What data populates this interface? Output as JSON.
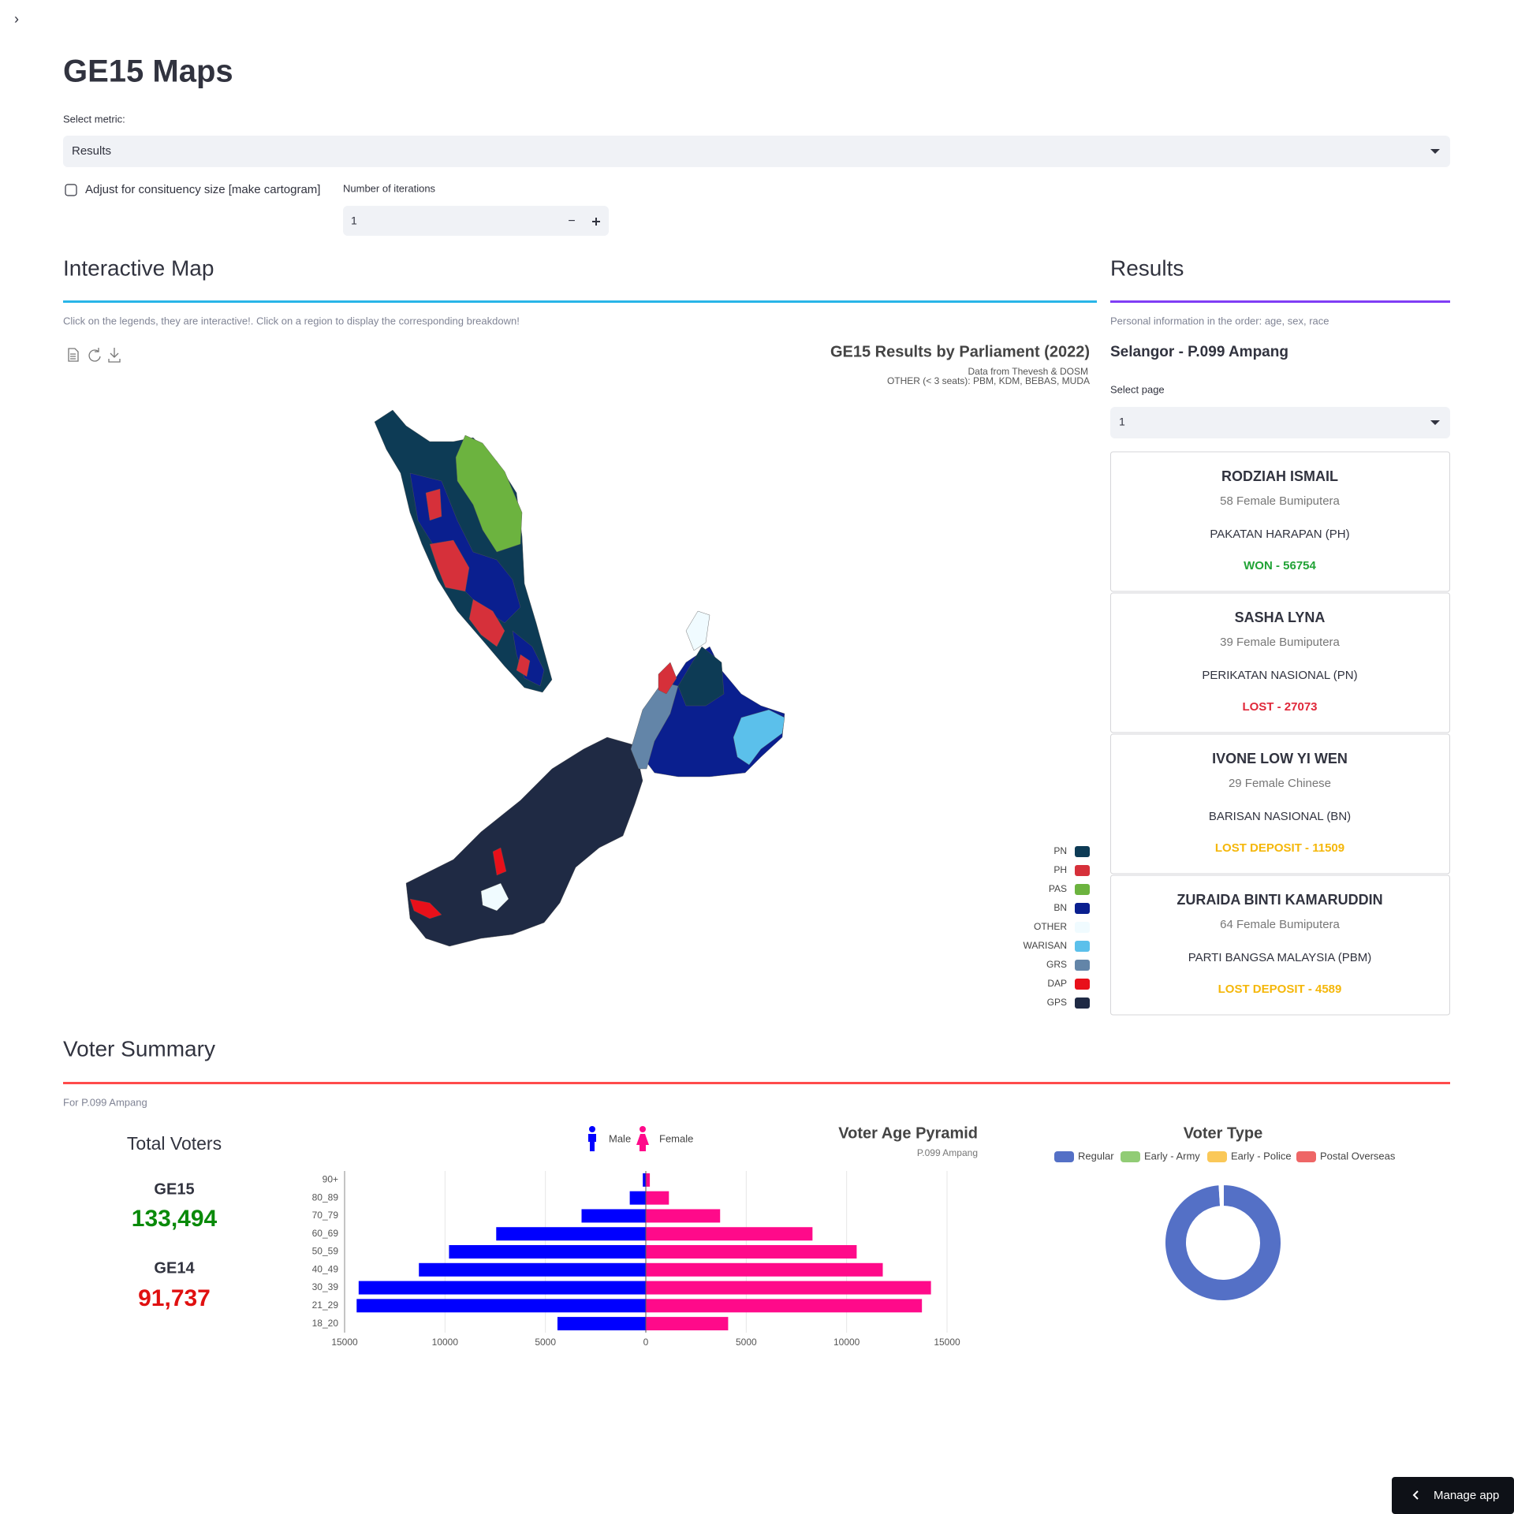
{
  "header": {
    "title": "GE15 Maps"
  },
  "controls": {
    "metric_label": "Select metric:",
    "metric_value": "Results",
    "checkbox_label": "Adjust for consituency size [make cartogram]",
    "iterations_label": "Number of iterations",
    "iterations_value": 1
  },
  "map_panel": {
    "heading": "Interactive Map",
    "caption": "Click on the legends, they are interactive!. Click on a region to display the corresponding breakdown!",
    "title": "GE15 Results by Parliament (2022)",
    "subtitle_1": "Data from Thevesh & DOSM",
    "subtitle_2": "OTHER (< 3 seats): PBM, KDM, BEBAS, MUDA",
    "legend": [
      {
        "name": "PN",
        "color": "#0d3b55"
      },
      {
        "name": "PH",
        "color": "#d6303a"
      },
      {
        "name": "PAS",
        "color": "#6cb33f"
      },
      {
        "name": "BN",
        "color": "#0a1f8f"
      },
      {
        "name": "OTHER",
        "color": "#f0fbff"
      },
      {
        "name": "WARISAN",
        "color": "#5bc0eb"
      },
      {
        "name": "GRS",
        "color": "#6385a8"
      },
      {
        "name": "DAP",
        "color": "#e8101a"
      },
      {
        "name": "GPS",
        "color": "#1f2a44"
      }
    ]
  },
  "results_panel": {
    "heading": "Results",
    "caption": "Personal information in the order: age, sex, race",
    "seat": "Selangor - P.099 Ampang",
    "page_label": "Select page",
    "page_value": 1,
    "candidates": [
      {
        "name": "RODZIAH ISMAIL",
        "info": "58 Female Bumiputera",
        "party": "PAKATAN HARAPAN (PH)",
        "result": "WON - 56754",
        "color": "#21a336"
      },
      {
        "name": "SASHA LYNA",
        "info": "39 Female Bumiputera",
        "party": "PERIKATAN NASIONAL (PN)",
        "result": "LOST - 27073",
        "color": "#e0283a"
      },
      {
        "name": "IVONE LOW YI WEN",
        "info": "29 Female Chinese",
        "party": "BARISAN NASIONAL (BN)",
        "result": "LOST DEPOSIT - 11509",
        "color": "#f5b70a"
      },
      {
        "name": "ZURAIDA BINTI KAMARUDDIN",
        "info": "64 Female Bumiputera",
        "party": "PARTI BANGSA MALAYSIA (PBM)",
        "result": "LOST DEPOSIT - 4589",
        "color": "#f5b70a"
      }
    ]
  },
  "voter_summary": {
    "heading": "Voter Summary",
    "caption": "For P.099 Ampang",
    "total_label": "Total Voters",
    "ge15_label": "GE15",
    "ge15_value": "133,494",
    "ge14_label": "GE14",
    "ge14_value": "91,737"
  },
  "footer": {
    "button": "Manage app"
  },
  "chart_data": [
    {
      "type": "pyramid",
      "title": "Voter Age Pyramid",
      "subtitle": "P.099 Ampang",
      "categories": [
        "18_20",
        "21_29",
        "30_39",
        "40_49",
        "50_59",
        "60_69",
        "70_79",
        "80_89",
        "90+"
      ],
      "series": [
        {
          "name": "Male",
          "color": "#0000ff",
          "values": [
            -4400,
            -14400,
            -14300,
            -11300,
            -9800,
            -7450,
            -3200,
            -800,
            -150
          ]
        },
        {
          "name": "Female",
          "color": "#ff0a8a",
          "values": [
            4100,
            13750,
            14200,
            11800,
            10500,
            8300,
            3700,
            1150,
            200
          ]
        }
      ],
      "xlim": [
        -15000,
        15000
      ],
      "xticks": [
        {
          "value": -15000,
          "label": "15000"
        },
        {
          "value": -10000,
          "label": "10000"
        },
        {
          "value": -5000,
          "label": "5000"
        },
        0,
        5000,
        10000,
        15000
      ],
      "grid": true
    },
    {
      "type": "donut",
      "title": "Voter Type",
      "categories": [
        "Regular",
        "Early - Army",
        "Early - Police",
        "Postal Overseas"
      ],
      "values": [
        99,
        0.3,
        0.3,
        0.4
      ],
      "colors": [
        "#5470c6",
        "#91cc75",
        "#fac858",
        "#ee6666"
      ]
    }
  ]
}
